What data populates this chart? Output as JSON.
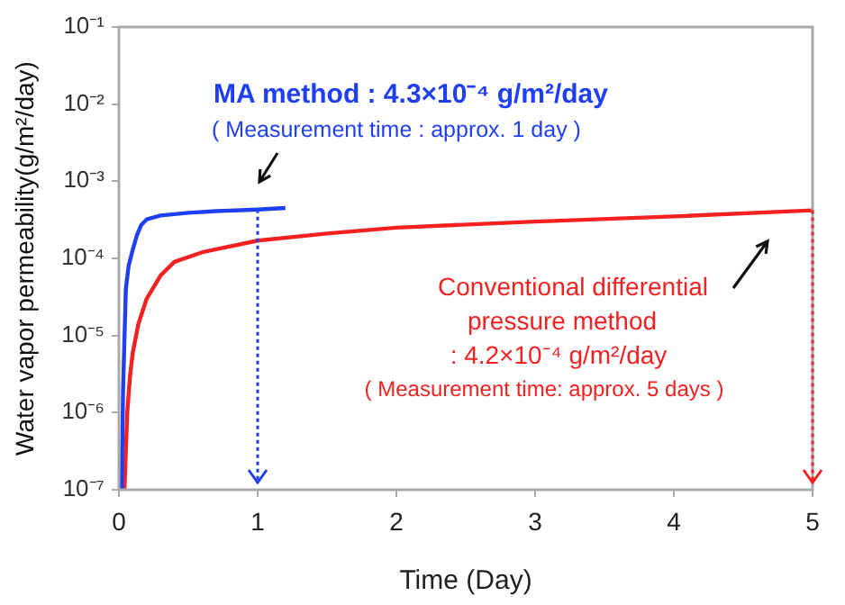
{
  "chart_data": {
    "type": "line",
    "xlabel": "Time (Day)",
    "ylabel": "Water vapor permeability(g/m²/day)",
    "log": "y",
    "grid": false,
    "legend": false,
    "marker": "none",
    "line_style": "solid",
    "xlim": [
      0,
      5
    ],
    "xticks": [
      0,
      1,
      2,
      3,
      4,
      5
    ],
    "ylim": [
      1e-07,
      0.1
    ],
    "yticks": [
      {
        "value": 1e-07,
        "label": "10⁻⁷"
      },
      {
        "value": 1e-06,
        "label": "10⁻⁶"
      },
      {
        "value": 1e-05,
        "label": "10⁻⁵"
      },
      {
        "value": 0.0001,
        "label": "10⁻⁴"
      },
      {
        "value": 0.001,
        "label": "10⁻³"
      },
      {
        "value": 0.01,
        "label": "10⁻²"
      },
      {
        "value": 0.1,
        "label": "10⁻¹"
      }
    ],
    "series": [
      {
        "color": "#1f3ff5",
        "x": [
          0.02,
          0.03,
          0.05,
          0.07,
          0.1,
          0.13,
          0.16,
          0.2,
          0.3,
          0.5,
          0.7,
          1,
          1.2
        ],
        "values": [
          1e-07,
          2e-06,
          4e-05,
          8e-05,
          0.00013,
          0.0002,
          0.00027,
          0.00032,
          0.00036,
          0.00039,
          0.00041,
          0.00043,
          0.00045
        ]
      },
      {
        "color": "#f52020",
        "x": [
          0.04,
          0.06,
          0.08,
          0.1,
          0.14,
          0.2,
          0.3,
          0.4,
          0.6,
          1,
          1.5,
          2,
          3,
          4,
          5
        ],
        "values": [
          1e-07,
          1e-06,
          3e-06,
          6e-06,
          1.4e-05,
          3e-05,
          6e-05,
          9e-05,
          0.00012,
          0.00017,
          0.00021,
          0.00025,
          0.0003,
          0.00035,
          0.00042
        ]
      }
    ],
    "ref_lines": [
      {
        "axis": "x",
        "value": 1,
        "color": "#1f3ff5",
        "line_style": "dotted"
      },
      {
        "axis": "x",
        "value": 5,
        "color": "#f52020",
        "line_style": "dotted"
      }
    ],
    "annotations": [
      "MA method : 4.3×10⁻⁴ g/m²/day",
      "( Measurement time : approx. 1 day )",
      "Conventional differential",
      "pressure method",
      ": 4.2×10⁻⁴ g/m²/day",
      "( Measurement time: approx. 5 days )"
    ]
  }
}
